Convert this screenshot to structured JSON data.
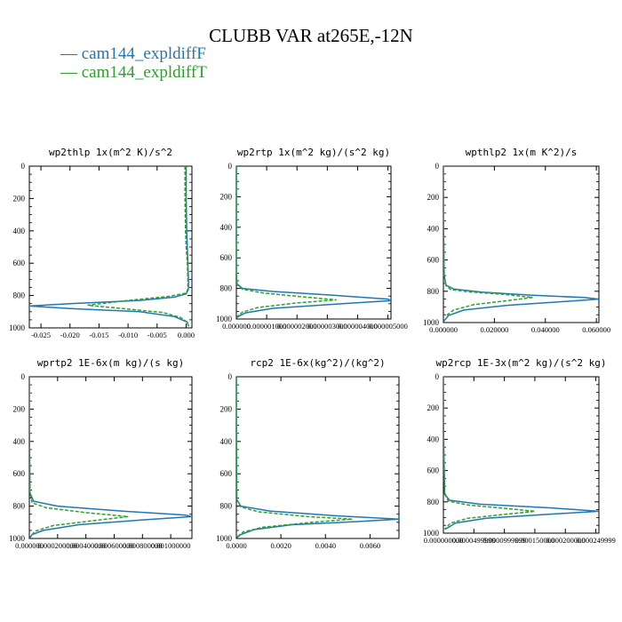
{
  "title": "CLUBB VAR at265E,-12N",
  "legend": [
    {
      "label": "— cam144_expldiffF",
      "color": "#1f77b4"
    },
    {
      "label": "— cam144_expldiffT",
      "color": "#2ca02c"
    }
  ],
  "chart_data": [
    {
      "type": "line",
      "title": "wp2thlp   1x(m^2 K)/s^2",
      "xlim": [
        -0.027,
        0.001
      ],
      "ylim": [
        1000,
        0
      ],
      "xticks": [
        -0.025,
        -0.02,
        -0.015,
        -0.01,
        -0.005,
        0.0
      ],
      "xticklabels": [
        "-0.025",
        "-0.020",
        "-0.015",
        "-0.010",
        "-0.005",
        "0.000"
      ],
      "yticks": [
        0,
        200,
        400,
        600,
        800,
        1000
      ],
      "series": [
        {
          "name": "cam144_expldiffF",
          "color": "#1f77b4",
          "dashed": false,
          "x": [
            0.0,
            0.0,
            0.0001,
            0.0002,
            0.0003,
            0.0004,
            0.0004,
            0.0,
            -0.002,
            -0.008,
            -0.02,
            -0.027,
            -0.02,
            -0.008,
            -0.002,
            0.0002,
            0.0004
          ],
          "y": [
            0,
            200,
            400,
            500,
            600,
            700,
            760,
            790,
            810,
            830,
            850,
            865,
            880,
            900,
            930,
            965,
            990
          ]
        },
        {
          "name": "cam144_expldiffT",
          "color": "#2ca02c",
          "dashed": true,
          "x": [
            -0.0002,
            -0.0002,
            -0.0001,
            0.0,
            0.0002,
            0.0003,
            0.0003,
            0.0,
            -0.003,
            -0.01,
            -0.017,
            -0.011,
            -0.004,
            -0.001,
            0.0002,
            0.0004
          ],
          "y": [
            0,
            200,
            400,
            500,
            600,
            700,
            760,
            785,
            805,
            830,
            860,
            880,
            905,
            935,
            965,
            990
          ]
        }
      ]
    },
    {
      "type": "line",
      "title": "wp2rtp   1x(m^2 kg)/(s^2 kg)",
      "xlim": [
        0.0,
        5.1e-06
      ],
      "ylim": [
        1000,
        0
      ],
      "xticks": [
        0,
        1e-06,
        2e-06,
        3e-06,
        4e-06,
        5e-06
      ],
      "xticklabels": [
        "0.000000",
        "0.000001000",
        "0.000002000",
        "0.000003000",
        "0.000004000",
        "0.000005000"
      ],
      "yticks": [
        0,
        200,
        400,
        600,
        800,
        1000
      ],
      "series": [
        {
          "name": "cam144_expldiffF",
          "color": "#1f77b4",
          "dashed": false,
          "x": [
            0,
            0,
            0,
            2e-08,
            2e-07,
            1.2e-06,
            3.2e-06,
            5e-06,
            5.1e-06,
            3.5e-06,
            1.2e-06,
            3e-07,
            5e-08,
            0
          ],
          "y": [
            0,
            300,
            700,
            770,
            800,
            820,
            845,
            870,
            880,
            900,
            930,
            960,
            985,
            995
          ]
        },
        {
          "name": "cam144_expldiffT",
          "color": "#2ca02c",
          "dashed": true,
          "x": [
            0,
            0,
            0,
            2e-08,
            2e-07,
            9e-07,
            2.2e-06,
            3.3e-06,
            2e-06,
            7e-07,
            2e-07,
            2e-08
          ],
          "y": [
            0,
            300,
            700,
            775,
            805,
            830,
            855,
            875,
            895,
            925,
            955,
            985
          ]
        }
      ]
    },
    {
      "type": "line",
      "title": "wpthlp2   1x(m K^2)/s",
      "xlim": [
        0.0,
        0.061
      ],
      "ylim": [
        1000,
        0
      ],
      "xticks": [
        0.0,
        0.02,
        0.04,
        0.06
      ],
      "xticklabels": [
        "0.000000",
        "0.020000",
        "0.040000",
        "0.060000"
      ],
      "yticks": [
        0,
        200,
        400,
        600,
        800,
        1000
      ],
      "series": [
        {
          "name": "cam144_expldiffF",
          "color": "#1f77b4",
          "dashed": false,
          "x": [
            0,
            0,
            0.0003,
            0.001,
            0.004,
            0.015,
            0.035,
            0.055,
            0.061,
            0.048,
            0.025,
            0.008,
            0.002,
            0.0002
          ],
          "y": [
            0,
            300,
            700,
            760,
            785,
            805,
            825,
            840,
            850,
            865,
            890,
            920,
            955,
            990
          ]
        },
        {
          "name": "cam144_expldiffT",
          "color": "#2ca02c",
          "dashed": true,
          "x": [
            0,
            0,
            0.0003,
            0.001,
            0.003,
            0.011,
            0.024,
            0.035,
            0.025,
            0.012,
            0.004,
            0.0008
          ],
          "y": [
            0,
            300,
            700,
            765,
            790,
            805,
            820,
            840,
            860,
            885,
            920,
            960
          ]
        }
      ]
    },
    {
      "type": "line",
      "title": "wprtp2   1E-6x(m kg)/(s kg)",
      "xlim": [
        0.0,
        1.15e-06
      ],
      "ylim": [
        1000,
        0
      ],
      "xticks": [
        0.0,
        2e-07,
        4e-07,
        6e-07,
        8e-07,
        1e-06
      ],
      "xticklabels": [
        "0.000000",
        "0.000200000",
        "0.000400000",
        "0.000600000",
        "0.000800000",
        "0.001000000"
      ],
      "yticks": [
        0,
        200,
        400,
        600,
        800,
        1000
      ],
      "series": [
        {
          "name": "cam144_expldiffF",
          "color": "#1f77b4",
          "dashed": false,
          "x": [
            0,
            0,
            5e-09,
            3e-08,
            2e-07,
            6.5e-07,
            1.1e-06,
            1.15e-06,
            8e-07,
            3.5e-07,
            1e-07,
            2e-08,
            5e-09
          ],
          "y": [
            0,
            300,
            720,
            770,
            800,
            830,
            855,
            865,
            885,
            915,
            950,
            975,
            995
          ]
        },
        {
          "name": "cam144_expldiffT",
          "color": "#2ca02c",
          "dashed": true,
          "x": [
            0,
            0,
            5e-09,
            2e-08,
            1.2e-07,
            4e-07,
            7e-07,
            4.5e-07,
            1.7e-07,
            4e-08,
            5e-09
          ],
          "y": [
            0,
            300,
            720,
            780,
            810,
            840,
            865,
            890,
            920,
            955,
            990
          ]
        }
      ]
    },
    {
      "type": "line",
      "title": "rcp2   1E-6x(kg^2)/(kg^2)",
      "xlim": [
        0.0,
        0.0073
      ],
      "ylim": [
        1000,
        0
      ],
      "xticks": [
        0.0,
        0.002,
        0.004,
        0.006
      ],
      "xticklabels": [
        "0.0000",
        "0.0020",
        "0.0040",
        "0.0060"
      ],
      "yticks": [
        0,
        200,
        400,
        600,
        800,
        1000
      ],
      "series": [
        {
          "name": "cam144_expldiffF",
          "color": "#1f77b4",
          "dashed": false,
          "x": [
            0,
            0,
            2e-05,
            0.0002,
            0.0015,
            0.0045,
            0.0073,
            0.0055,
            0.0025,
            0.0008,
            0.0002,
            2e-05
          ],
          "y": [
            0,
            300,
            760,
            800,
            830,
            860,
            880,
            895,
            915,
            945,
            975,
            995
          ]
        },
        {
          "name": "cam144_expldiffT",
          "color": "#2ca02c",
          "dashed": true,
          "x": [
            0,
            0,
            2e-05,
            0.0002,
            0.001,
            0.0032,
            0.0052,
            0.0034,
            0.0012,
            0.0003,
            3e-05
          ],
          "y": [
            0,
            300,
            760,
            805,
            835,
            865,
            880,
            900,
            930,
            960,
            990
          ]
        }
      ]
    },
    {
      "type": "line",
      "title": "wp2rcp   1E-3x(m^2 kg)/(s^2 kg)",
      "xlim": [
        0.0,
        2.55e-07
      ],
      "ylim": [
        1000,
        0
      ],
      "xticks": [
        0.0,
        5e-08,
        1e-07,
        1.5e-07,
        2e-07,
        2.5e-07
      ],
      "xticklabels": [
        "0.000000000",
        "0.0000499999",
        "0.0000999999",
        "0.000150000",
        "0.000200000",
        "0.000249999"
      ],
      "yticks": [
        0,
        200,
        400,
        600,
        800,
        1000
      ],
      "series": [
        {
          "name": "cam144_expldiffF",
          "color": "#1f77b4",
          "dashed": false,
          "x": [
            0,
            0,
            2e-09,
            1e-08,
            6e-08,
            1.8e-07,
            2.55e-07,
            1.7e-07,
            7e-08,
            2e-08,
            3e-09
          ],
          "y": [
            0,
            300,
            750,
            790,
            815,
            840,
            860,
            880,
            905,
            935,
            975
          ]
        },
        {
          "name": "cam144_expldiffT",
          "color": "#2ca02c",
          "dashed": true,
          "x": [
            0,
            0,
            2e-09,
            8e-09,
            4e-08,
            1.1e-07,
            1.5e-07,
            1e-07,
            4e-08,
            1.2e-08,
            2e-09
          ],
          "y": [
            0,
            300,
            750,
            795,
            820,
            845,
            860,
            880,
            905,
            935,
            975
          ]
        }
      ]
    }
  ]
}
